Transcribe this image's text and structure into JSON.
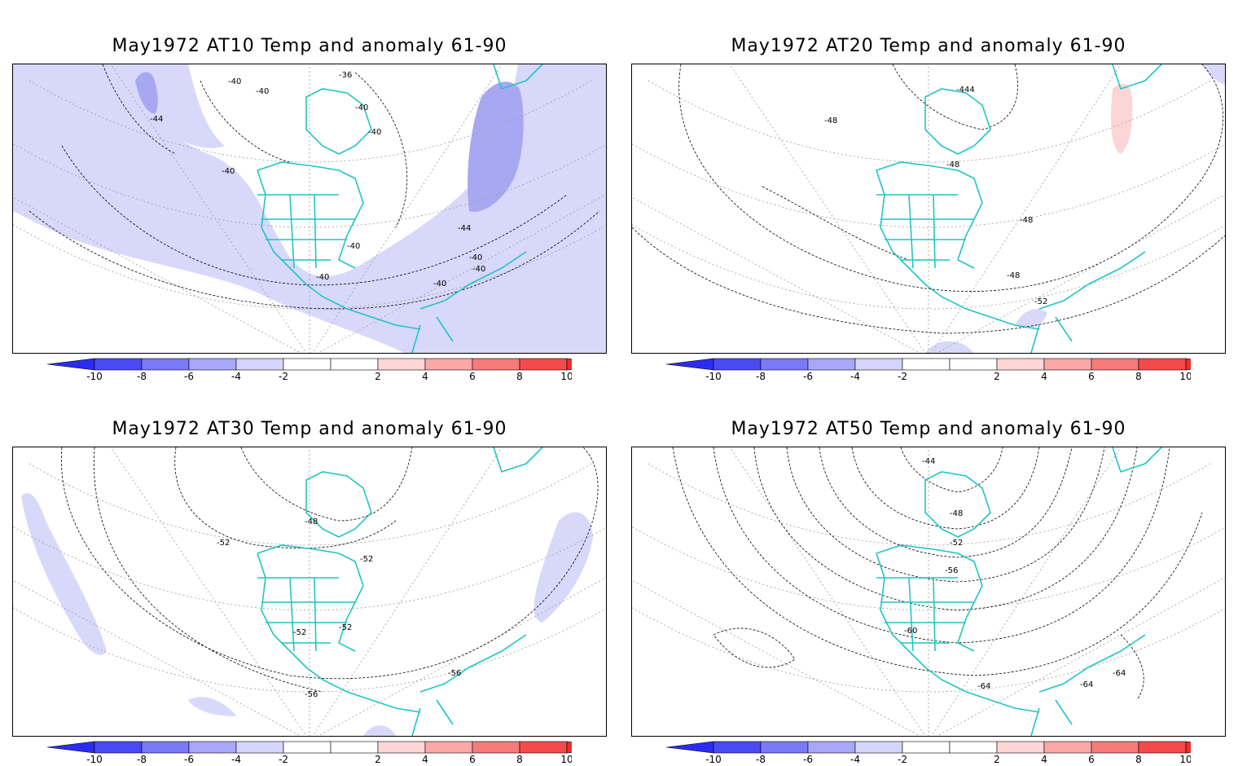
{
  "colorbar": {
    "colors": [
      "#2c2cf0",
      "#4a4af4",
      "#7a7af6",
      "#a8a8f8",
      "#d6d6fc",
      "#ffffff",
      "#ffffff",
      "#fed6d6",
      "#fca8a8",
      "#f67a7a",
      "#f44a4a",
      "#f02c2c"
    ],
    "tick_labels": [
      "-10",
      "-8",
      "-6",
      "-4",
      "-2",
      "2",
      "4",
      "6",
      "8",
      "10"
    ]
  },
  "colors": {
    "coast": "#22c4c4",
    "anomaly_neg": "#d8d8fa",
    "anomaly_neg_strong": "#a8a8f2",
    "anomaly_pos": "#fcd6d6",
    "grid": "#9a9a9a"
  },
  "panels": [
    {
      "title": "May1972 AT10 Temp and anomaly 61-90",
      "labels": [
        "-36",
        "-40",
        "-40",
        "-40",
        "-40",
        "-40",
        "-44",
        "-40",
        "-40",
        "-40",
        "-44",
        "-40",
        "-40"
      ]
    },
    {
      "title": "May1972 AT20 Temp and anomaly 61-90",
      "labels": [
        "-444",
        "-48",
        "-48",
        "-48",
        "-48",
        "-52"
      ]
    },
    {
      "title": "May1972 AT30 Temp and anomaly 61-90",
      "labels": [
        "-48",
        "-52",
        "-52",
        "-52",
        "-52",
        "-56",
        "-56"
      ]
    },
    {
      "title": "May1972 AT50 Temp and anomaly 61-90",
      "labels": [
        "-44",
        "-48",
        "-52",
        "-56",
        "-60",
        "-64",
        "-64",
        "-64"
      ]
    }
  ]
}
